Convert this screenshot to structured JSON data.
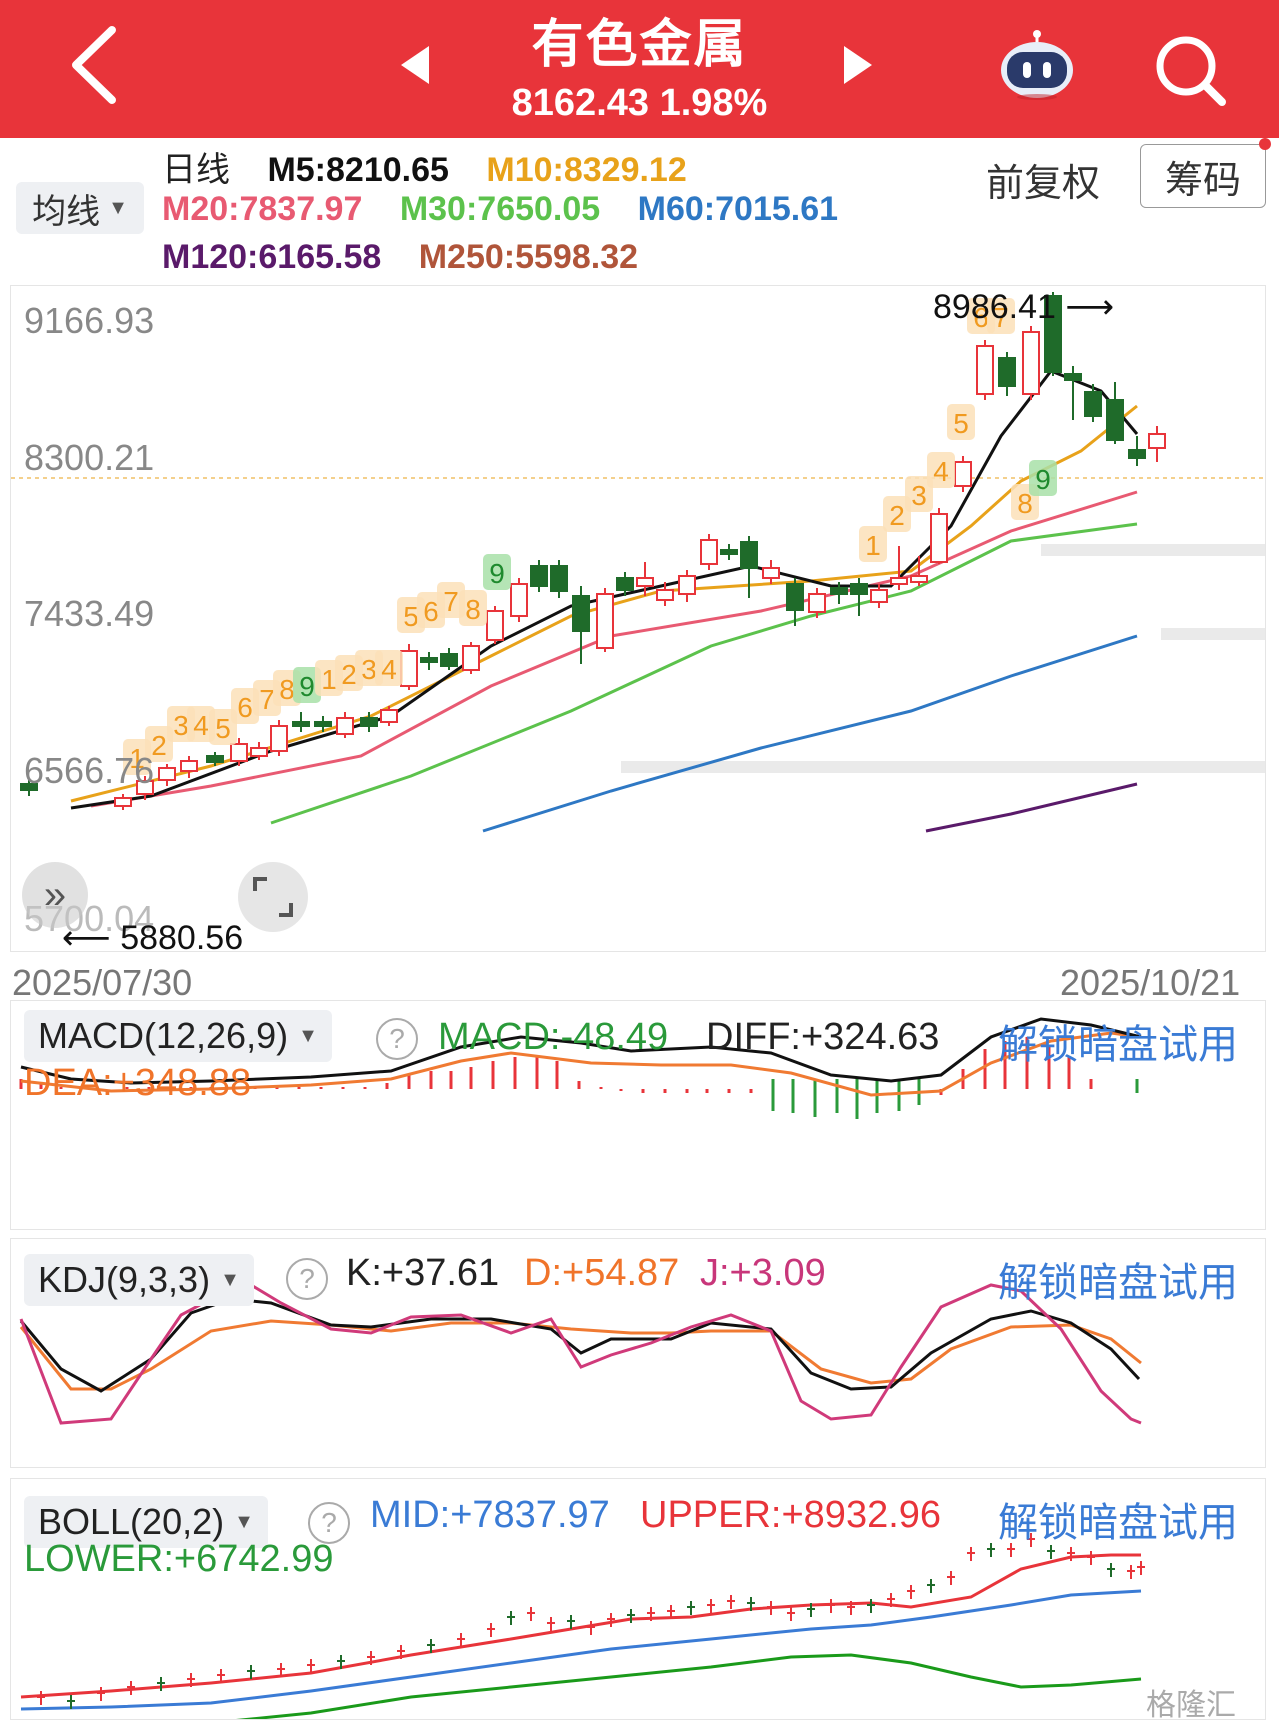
{
  "header": {
    "title": "有色金属",
    "price": "8162.43",
    "change": "1.98%",
    "bg_color": "#e8343a"
  },
  "ma_bar": {
    "selector_label": "均线",
    "period": "日线",
    "m5": "M5:8210.65",
    "m10": "M10:8329.12",
    "m20": "M20:7837.97",
    "m30": "M30:7650.05",
    "m60": "M60:7015.61",
    "m120": "M120:6165.58",
    "m250": "M250:5598.32",
    "adjust": "前复权",
    "chips_button": "筹码"
  },
  "main_chart": {
    "price_levels": [
      "9166.93",
      "8300.21",
      "7433.49",
      "6566.76",
      "5700.04"
    ],
    "high_marker": "8986.41",
    "low_marker": "5880.56",
    "start_date": "2025/07/30",
    "end_date": "2025/10/21"
  },
  "macd": {
    "selector": "MACD(12,26,9)",
    "macd": "MACD:-48.49",
    "diff": "DIFF:+324.63",
    "dea": "DEA:+348.88",
    "unlock": "解锁暗盘试用"
  },
  "kdj": {
    "selector": "KDJ(9,3,3)",
    "k": "K:+37.61",
    "d": "D:+54.87",
    "j": "J:+3.09",
    "unlock": "解锁暗盘试用"
  },
  "boll": {
    "selector": "BOLL(20,2)",
    "mid": "MID:+7837.97",
    "upper": "UPPER:+8932.96",
    "lower": "LOWER:+6742.99",
    "unlock": "解锁暗盘试用"
  },
  "watermark": "格隆汇",
  "colors": {
    "up": "#e8343a",
    "down": "#1f6b2a",
    "m5": "#111111",
    "m10": "#e8a21a",
    "m20": "#e85a72",
    "m30": "#5cc24c",
    "m60": "#2e78c4",
    "m120": "#5a1a6a",
    "m250": "#b0553a"
  }
}
